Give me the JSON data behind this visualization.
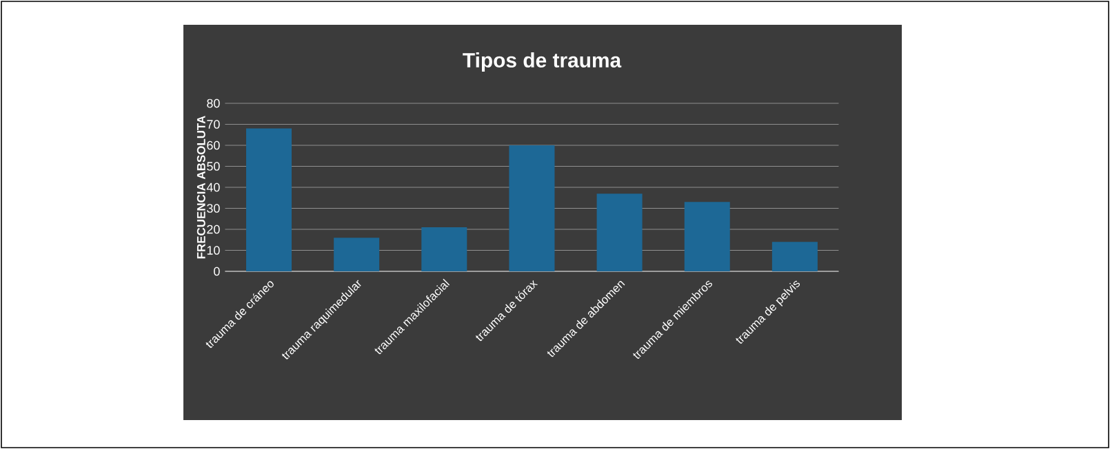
{
  "chart_data": {
    "type": "bar",
    "title": "Tipos de trauma",
    "ylabel": "FRECUENCIA ABSOLUTA",
    "categories": [
      "trauma de cráneo",
      "trauma raquimedular",
      "trauma maxilofacial",
      "trauma de tórax",
      "trauma de abdomen",
      "trauma de miembros",
      "trauma de pelvis"
    ],
    "values": [
      68,
      16,
      21,
      60,
      37,
      33,
      14
    ],
    "color": "#1d6896",
    "ylim": [
      0,
      80
    ],
    "yticks": [
      0,
      10,
      20,
      30,
      40,
      50,
      60,
      70,
      80
    ],
    "grid": "y"
  }
}
